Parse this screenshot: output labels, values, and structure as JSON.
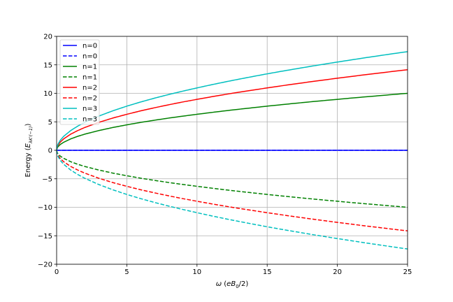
{
  "chart_data": {
    "type": "line",
    "title": "",
    "xlabel": "ω (eB₀/2)",
    "ylabel": "Energy (E_{λK'(−1)})",
    "xlim": [
      0,
      25
    ],
    "ylim": [
      -20,
      20
    ],
    "xticks": [
      0,
      5,
      10,
      15,
      20,
      25
    ],
    "yticks": [
      -20,
      -15,
      -10,
      -5,
      0,
      5,
      10,
      15,
      20
    ],
    "xtick_labels": [
      "0",
      "5",
      "10",
      "15",
      "20",
      "25"
    ],
    "ytick_labels": [
      "−20",
      "−15",
      "−10",
      "−5",
      "0",
      "5",
      "10",
      "15",
      "20"
    ],
    "grid": true,
    "legend_position": "top-left",
    "x": [
      0,
      0.05,
      0.1,
      0.25,
      0.5,
      1,
      1.5,
      2,
      3,
      4,
      5,
      6,
      7,
      8,
      9,
      10,
      11,
      12,
      13,
      14,
      15,
      16,
      17,
      18,
      19,
      20,
      21,
      22,
      23,
      24,
      25
    ],
    "series": [
      {
        "name": "n=0",
        "color": "#0000ff",
        "dash": "solid",
        "values": [
          0,
          0,
          0,
          0,
          0,
          0,
          0,
          0,
          0,
          0,
          0,
          0,
          0,
          0,
          0,
          0,
          0,
          0,
          0,
          0,
          0,
          0,
          0,
          0,
          0,
          0,
          0,
          0,
          0,
          0,
          0
        ]
      },
      {
        "name": "n=0",
        "color": "#0000ff",
        "dash": "dashed",
        "values": [
          0,
          0,
          0,
          0,
          0,
          0,
          0,
          0,
          0,
          0,
          0,
          0,
          0,
          0,
          0,
          0,
          0,
          0,
          0,
          0,
          0,
          0,
          0,
          0,
          0,
          0,
          0,
          0,
          0,
          0,
          0
        ]
      },
      {
        "name": "n=1",
        "color": "#008000",
        "dash": "solid",
        "values": [
          0,
          0.45,
          0.63,
          1.0,
          1.41,
          2.0,
          2.45,
          2.83,
          3.46,
          4.0,
          4.47,
          4.9,
          5.29,
          5.66,
          6.0,
          6.32,
          6.63,
          6.93,
          7.21,
          7.48,
          7.75,
          8.0,
          8.25,
          8.49,
          8.72,
          8.94,
          9.17,
          9.38,
          9.59,
          9.8,
          10.0
        ]
      },
      {
        "name": "n=1",
        "color": "#008000",
        "dash": "dashed",
        "values": [
          0,
          -0.45,
          -0.63,
          -1.0,
          -1.41,
          -2.0,
          -2.45,
          -2.83,
          -3.46,
          -4.0,
          -4.47,
          -4.9,
          -5.29,
          -5.66,
          -6.0,
          -6.32,
          -6.63,
          -6.93,
          -7.21,
          -7.48,
          -7.75,
          -8.0,
          -8.25,
          -8.49,
          -8.72,
          -8.94,
          -9.17,
          -9.38,
          -9.59,
          -9.8,
          -10.0
        ]
      },
      {
        "name": "n=2",
        "color": "#ff0000",
        "dash": "solid",
        "values": [
          0,
          0.63,
          0.89,
          1.41,
          2.0,
          2.83,
          3.46,
          4.0,
          4.9,
          5.66,
          6.32,
          6.93,
          7.48,
          8.0,
          8.49,
          8.94,
          9.38,
          9.8,
          10.2,
          10.58,
          10.95,
          11.31,
          11.66,
          12.0,
          12.33,
          12.65,
          12.96,
          13.27,
          13.56,
          13.86,
          14.14
        ]
      },
      {
        "name": "n=2",
        "color": "#ff0000",
        "dash": "dashed",
        "values": [
          0,
          -0.63,
          -0.89,
          -1.41,
          -2.0,
          -2.83,
          -3.46,
          -4.0,
          -4.9,
          -5.66,
          -6.32,
          -6.93,
          -7.48,
          -8.0,
          -8.49,
          -8.94,
          -9.38,
          -9.8,
          -10.2,
          -10.58,
          -10.95,
          -11.31,
          -11.66,
          -12.0,
          -12.33,
          -12.65,
          -12.96,
          -13.27,
          -13.56,
          -13.86,
          -14.14
        ]
      },
      {
        "name": "n=3",
        "color": "#00bfbf",
        "dash": "solid",
        "values": [
          0,
          0.77,
          1.1,
          1.73,
          2.45,
          3.46,
          4.24,
          4.9,
          6.0,
          6.93,
          7.75,
          8.49,
          9.17,
          9.8,
          10.39,
          10.95,
          11.49,
          12.0,
          12.49,
          12.96,
          13.42,
          13.86,
          14.28,
          14.7,
          15.1,
          15.49,
          15.87,
          16.25,
          16.61,
          16.97,
          17.32
        ]
      },
      {
        "name": "n=3",
        "color": "#00bfbf",
        "dash": "dashed",
        "values": [
          0,
          -0.77,
          -1.1,
          -1.73,
          -2.45,
          -3.46,
          -4.24,
          -4.9,
          -6.0,
          -6.93,
          -7.75,
          -8.49,
          -9.17,
          -9.8,
          -10.39,
          -10.95,
          -11.49,
          -12.0,
          -12.49,
          -12.96,
          -13.42,
          -13.86,
          -14.28,
          -14.7,
          -15.1,
          -15.49,
          -15.87,
          -16.25,
          -16.61,
          -16.97,
          -17.32
        ]
      }
    ]
  }
}
